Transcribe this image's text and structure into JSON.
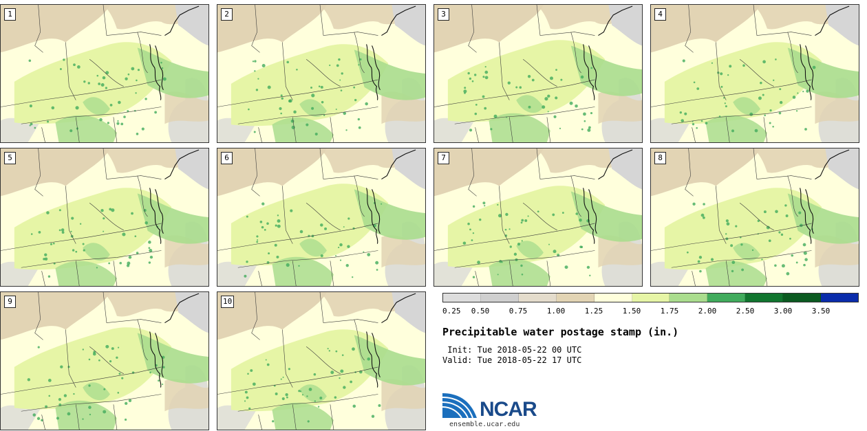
{
  "title": "Precipitable water postage stamp (in.)",
  "init": " Init: Tue 2018-05-22 00 UTC",
  "valid": "Valid: Tue 2018-05-22 17 UTC",
  "logo_text": "NCAR",
  "logo_url": "ensemble.ucar.edu",
  "stamps": [
    "1",
    "2",
    "3",
    "4",
    "5",
    "6",
    "7",
    "8",
    "9",
    "10"
  ],
  "colorbar": {
    "ticks": [
      "0.25",
      "0.50",
      "0.75",
      "1.00",
      "1.25",
      "1.50",
      "1.75",
      "2.00",
      "2.50",
      "3.00",
      "3.50"
    ],
    "colors": [
      "#dddddd",
      "#cfcfcf",
      "#e4dccc",
      "#e2d4b4",
      "#ffffdc",
      "#e6f5a6",
      "#aadd8e",
      "#41ab5d",
      "#11752f",
      "#0b5a21",
      "#0a2cab"
    ]
  },
  "map_colors": {
    "base": "#ffffdc",
    "tan": "#e2d4b4",
    "gray": "#d6d6d6",
    "lightgreen": "#e6f5a6",
    "green": "#aadd8e",
    "darkgreen": "#41ab5d",
    "border": "#3a3a3a"
  }
}
